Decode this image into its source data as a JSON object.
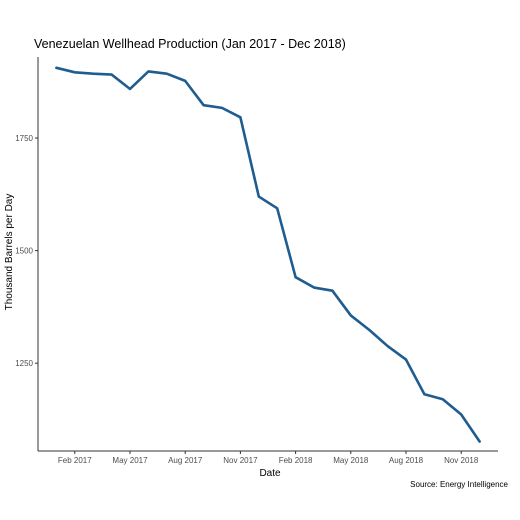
{
  "chart_data": {
    "type": "line",
    "title": "Venezuelan Wellhead Production  (Jan 2017 - Dec 2018)",
    "xlabel": "Date",
    "ylabel": "Thousand Barrels per Day",
    "caption": "Source: Energy Intelligence",
    "x": [
      "2017-01",
      "2017-02",
      "2017-03",
      "2017-04",
      "2017-05",
      "2017-06",
      "2017-07",
      "2017-08",
      "2017-09",
      "2017-10",
      "2017-11",
      "2017-12",
      "2018-01",
      "2018-02",
      "2018-03",
      "2018-04",
      "2018-05",
      "2018-06",
      "2018-07",
      "2018-08",
      "2018-09",
      "2018-10",
      "2018-11",
      "2018-12"
    ],
    "series": [
      {
        "values": [
          1906,
          1896,
          1893,
          1891,
          1859,
          1898,
          1893,
          1877,
          1823,
          1817,
          1796,
          1620,
          1594,
          1441,
          1418,
          1411,
          1356,
          1324,
          1288,
          1258,
          1181,
          1170,
          1136,
          1076
        ],
        "color": "#1f5c8f"
      }
    ],
    "x_ticks": [
      {
        "date": "2017-02",
        "label": "Feb 2017"
      },
      {
        "date": "2017-05",
        "label": "May 2017"
      },
      {
        "date": "2017-08",
        "label": "Aug 2017"
      },
      {
        "date": "2017-11",
        "label": "Nov 2017"
      },
      {
        "date": "2018-02",
        "label": "Feb 2018"
      },
      {
        "date": "2018-05",
        "label": "May 2018"
      },
      {
        "date": "2018-08",
        "label": "Aug 2018"
      },
      {
        "date": "2018-11",
        "label": "Nov 2018"
      }
    ],
    "y_ticks": [
      1250,
      1500,
      1750
    ],
    "ylim": [
      1055,
      1930
    ],
    "xlim": [
      "2016-12",
      "2019-01"
    ],
    "grid": false,
    "legend": "none",
    "axis_color": "#333333"
  }
}
